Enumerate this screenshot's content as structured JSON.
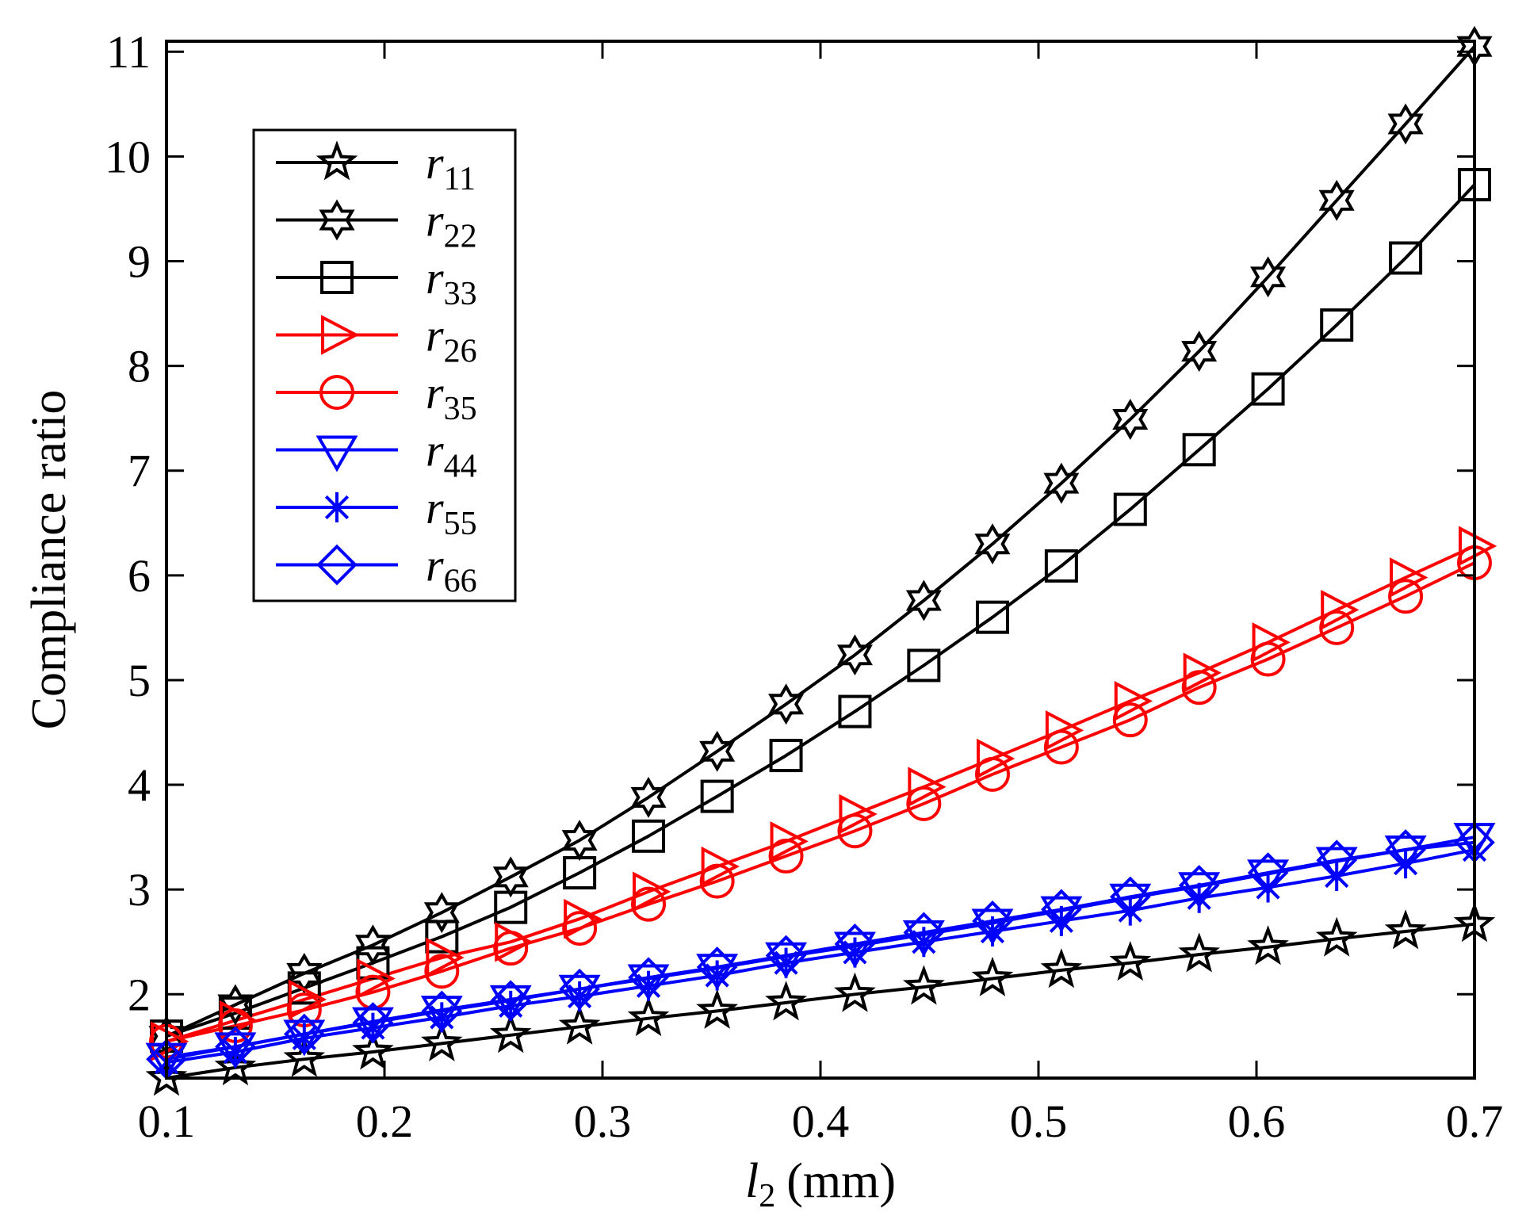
{
  "chart_data": {
    "type": "line",
    "xlabel_var": "l",
    "xlabel_sub": "2",
    "xlabel_unit": "(mm)",
    "ylabel": "Compliance ratio",
    "xlim": [
      0.1,
      0.7
    ],
    "ylim": [
      1.2,
      11.1
    ],
    "xticks": [
      "0.1",
      "0.2",
      "0.3",
      "0.4",
      "0.5",
      "0.6",
      "0.7"
    ],
    "yticks": [
      "2",
      "3",
      "4",
      "5",
      "6",
      "7",
      "8",
      "9",
      "10",
      "11"
    ],
    "grid": false,
    "legend_position": "top-left",
    "x": [
      0.1,
      0.1316,
      0.1632,
      0.1947,
      0.2263,
      0.2579,
      0.2895,
      0.3211,
      0.3526,
      0.3842,
      0.4158,
      0.4474,
      0.4789,
      0.5105,
      0.5421,
      0.5737,
      0.6053,
      0.6368,
      0.6684,
      0.7
    ],
    "series": [
      {
        "label": "r",
        "sub": "11",
        "color": "#000000",
        "marker": "star5",
        "values": [
          1.2,
          1.3,
          1.38,
          1.45,
          1.53,
          1.61,
          1.69,
          1.77,
          1.84,
          1.92,
          2.0,
          2.07,
          2.15,
          2.23,
          2.3,
          2.38,
          2.45,
          2.53,
          2.6,
          2.67
        ]
      },
      {
        "label": "r",
        "sub": "22",
        "color": "#000000",
        "marker": "star6",
        "values": [
          1.6,
          1.9,
          2.2,
          2.47,
          2.78,
          3.12,
          3.47,
          3.88,
          4.32,
          4.77,
          5.24,
          5.76,
          6.3,
          6.88,
          7.49,
          8.14,
          8.85,
          9.58,
          10.31,
          11.05
        ]
      },
      {
        "label": "r",
        "sub": "33",
        "color": "#000000",
        "marker": "square",
        "values": [
          1.6,
          1.82,
          2.06,
          2.3,
          2.55,
          2.83,
          3.16,
          3.51,
          3.89,
          4.28,
          4.7,
          5.14,
          5.6,
          6.09,
          6.63,
          7.2,
          7.78,
          8.39,
          9.03,
          9.73
        ]
      },
      {
        "label": "r",
        "sub": "26",
        "color": "#ff0000",
        "marker": "triangle-right",
        "values": [
          1.55,
          1.75,
          1.95,
          2.15,
          2.35,
          2.5,
          2.72,
          2.98,
          3.22,
          3.46,
          3.72,
          3.98,
          4.25,
          4.52,
          4.8,
          5.07,
          5.36,
          5.67,
          5.98,
          6.28
        ]
      },
      {
        "label": "r",
        "sub": "35",
        "color": "#ff0000",
        "marker": "circle",
        "values": [
          1.55,
          1.7,
          1.85,
          2.02,
          2.22,
          2.44,
          2.63,
          2.86,
          3.08,
          3.32,
          3.56,
          3.82,
          4.1,
          4.36,
          4.62,
          4.93,
          5.2,
          5.5,
          5.8,
          6.12
        ]
      },
      {
        "label": "r",
        "sub": "44",
        "color": "#0000ff",
        "marker": "triangle-down",
        "values": [
          1.4,
          1.5,
          1.62,
          1.74,
          1.85,
          1.95,
          2.05,
          2.15,
          2.25,
          2.36,
          2.46,
          2.57,
          2.68,
          2.8,
          2.92,
          3.03,
          3.15,
          3.27,
          3.38,
          3.5
        ]
      },
      {
        "label": "r",
        "sub": "55",
        "color": "#0000ff",
        "marker": "asterisk",
        "values": [
          1.35,
          1.45,
          1.58,
          1.68,
          1.78,
          1.89,
          1.98,
          2.08,
          2.18,
          2.3,
          2.4,
          2.5,
          2.6,
          2.7,
          2.8,
          2.92,
          3.02,
          3.13,
          3.25,
          3.38
        ]
      },
      {
        "label": "r",
        "sub": "66",
        "color": "#0000ff",
        "marker": "diamond",
        "values": [
          1.38,
          1.5,
          1.62,
          1.73,
          1.84,
          1.94,
          2.05,
          2.16,
          2.26,
          2.37,
          2.48,
          2.59,
          2.7,
          2.81,
          2.93,
          3.04,
          3.16,
          3.28,
          3.38,
          3.45
        ]
      }
    ]
  }
}
